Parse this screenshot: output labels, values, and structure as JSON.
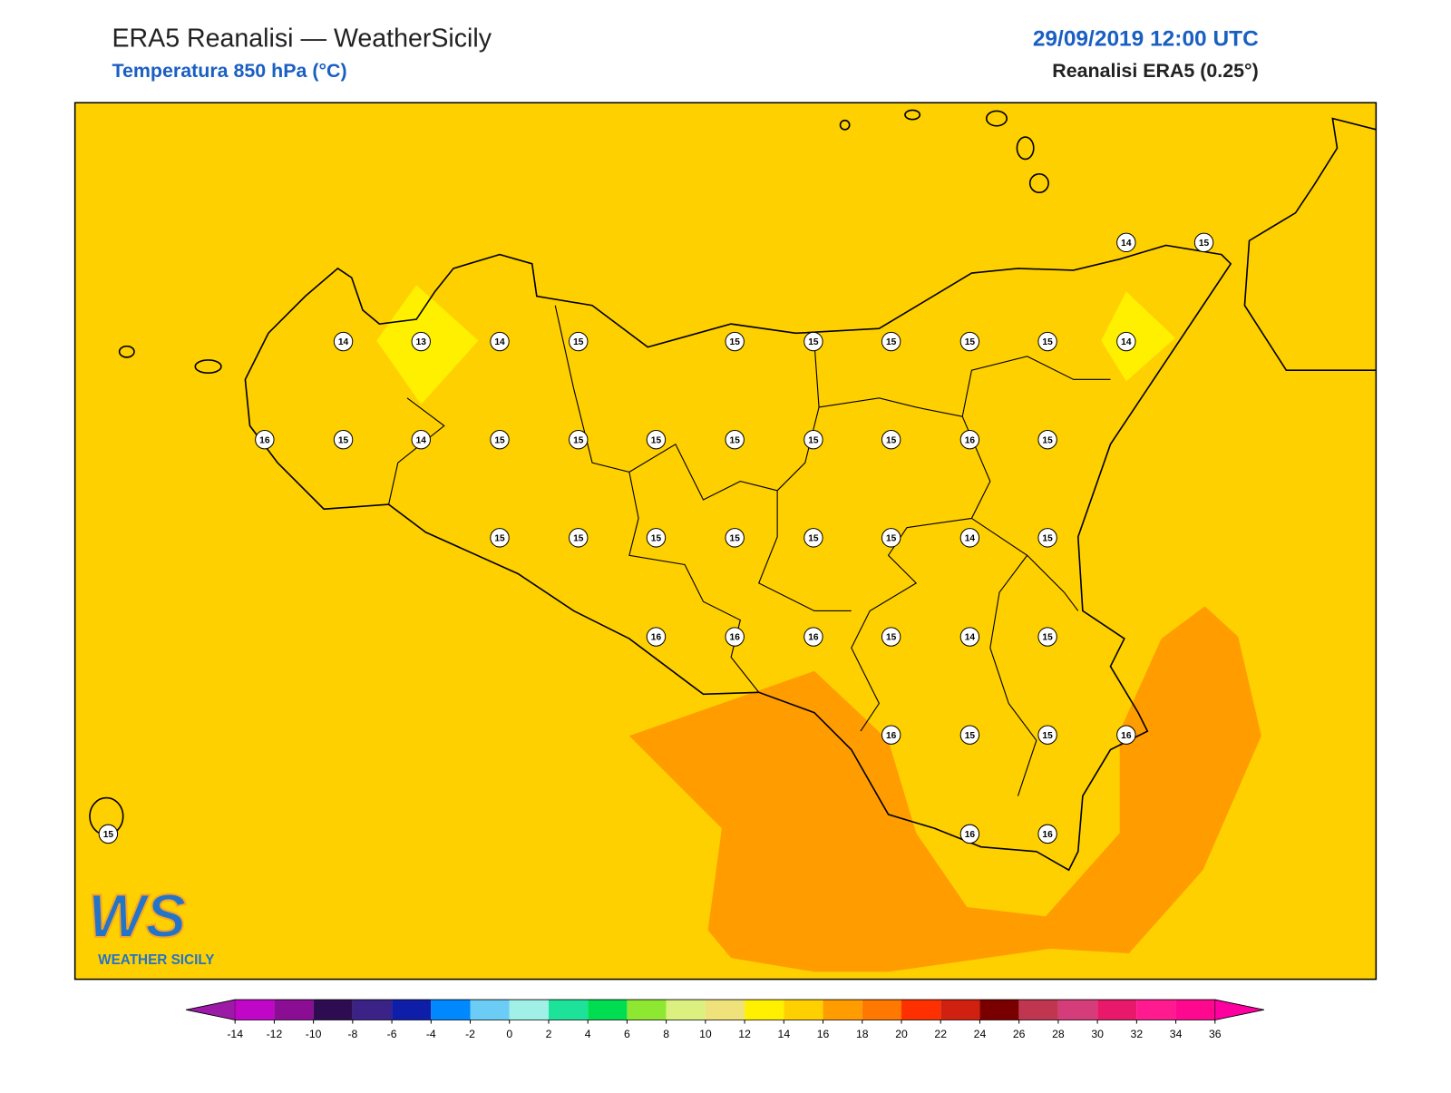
{
  "header": {
    "title": "ERA5 Reanalisi — WeatherSicily",
    "subtitle": "Temperatura 850 hPa (°C)",
    "datetime": "29/09/2019 12:00 UTC",
    "source": "Reanalisi ERA5 (0.25°)"
  },
  "stations": [
    14,
    15,
    14,
    13,
    14,
    15,
    15,
    15,
    15,
    15,
    15,
    14,
    16,
    15,
    14,
    15,
    15,
    15,
    15,
    15,
    15,
    16,
    15,
    15,
    15,
    15,
    15,
    15,
    15,
    14,
    15,
    16,
    16,
    16,
    15,
    14,
    15,
    16,
    15,
    15,
    16,
    15,
    16,
    16
  ],
  "colorbar": {
    "ticks": [
      -14,
      -12,
      -10,
      -8,
      -6,
      -4,
      -2,
      0,
      2,
      4,
      6,
      8,
      10,
      12,
      14,
      16,
      18,
      20,
      22,
      24,
      26,
      28,
      30,
      32,
      34,
      36
    ],
    "colors": [
      "#9c1aa5",
      "#c006c6",
      "#8a0d94",
      "#2e0c52",
      "#3a2286",
      "#0f1ea8",
      "#0088ff",
      "#6bcdf5",
      "#a0f0e8",
      "#1de39a",
      "#00dd50",
      "#8ee832",
      "#dbf07f",
      "#efe27b",
      "#fff000",
      "#ffd000",
      "#ff9c00",
      "#ff7800",
      "#ff3000",
      "#d02010",
      "#7a0000",
      "#c03650",
      "#d43c7a",
      "#e8186a",
      "#ff1a90",
      "#ff0890",
      "#ff00a0"
    ]
  },
  "logo": {
    "mark": "WS",
    "text": "WEATHER SICILY"
  }
}
